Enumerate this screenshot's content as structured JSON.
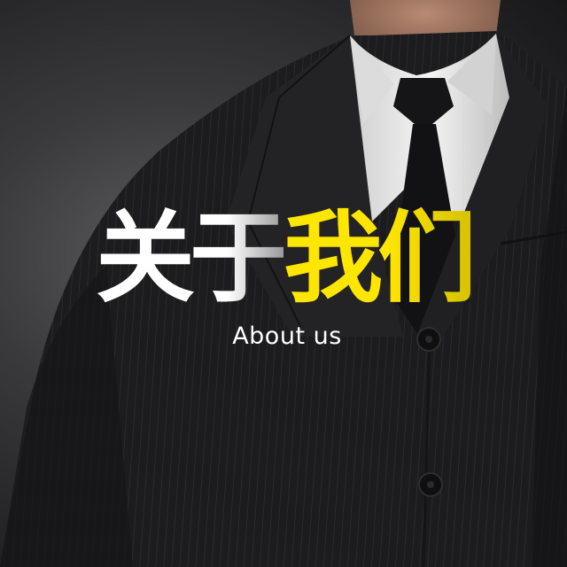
{
  "title": {
    "part_white": "关于",
    "part_yellow": "我们"
  },
  "subtitle": "About us",
  "colors": {
    "title_white": "#ffffff",
    "title_yellow": "#ffe600",
    "background": "#2a2a2c",
    "suit": "#1b1b1d",
    "shirt": "#e8e8e8",
    "tie": "#121214"
  }
}
